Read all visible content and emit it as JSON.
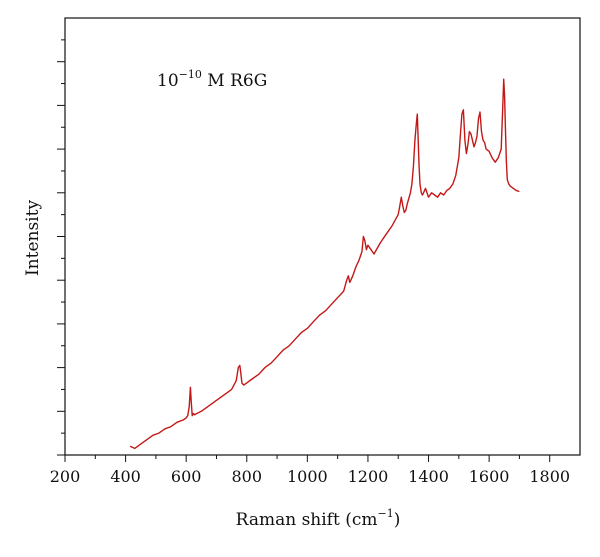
{
  "chart_data": {
    "type": "line",
    "title": "",
    "annotation": {
      "base": "10",
      "exponent": "−10",
      "rest": " M R6G"
    },
    "xlabel": {
      "text": "Raman shift (cm",
      "exponent": "−1",
      "close": ")"
    },
    "ylabel": "Intensity",
    "xlim": [
      200,
      1900
    ],
    "xticks": [
      200,
      400,
      600,
      800,
      1000,
      1200,
      1400,
      1600,
      1800
    ],
    "ylim": [
      0,
      100
    ],
    "yticks_major": [
      0,
      10,
      20,
      30,
      40,
      50,
      60,
      70,
      80,
      90
    ],
    "y_tick_labels": false,
    "grid": false,
    "legend": "none",
    "series": [
      {
        "color": "#c41818",
        "x": [
          415,
          430,
          450,
          470,
          490,
          510,
          530,
          550,
          570,
          590,
          600,
          605,
          610,
          614,
          617,
          620,
          624,
          628,
          635,
          650,
          670,
          690,
          710,
          730,
          750,
          765,
          772,
          777,
          780,
          784,
          790,
          800,
          820,
          840,
          860,
          880,
          900,
          920,
          940,
          960,
          980,
          1000,
          1020,
          1040,
          1060,
          1080,
          1100,
          1120,
          1130,
          1135,
          1140,
          1150,
          1160,
          1170,
          1180,
          1185,
          1190,
          1195,
          1200,
          1210,
          1220,
          1240,
          1260,
          1280,
          1300,
          1305,
          1310,
          1315,
          1320,
          1325,
          1330,
          1340,
          1345,
          1350,
          1355,
          1360,
          1363,
          1366,
          1369,
          1372,
          1376,
          1380,
          1390,
          1400,
          1410,
          1420,
          1430,
          1440,
          1450,
          1460,
          1470,
          1480,
          1490,
          1500,
          1505,
          1510,
          1515,
          1520,
          1525,
          1530,
          1535,
          1540,
          1545,
          1550,
          1555,
          1560,
          1565,
          1570,
          1575,
          1580,
          1585,
          1590,
          1600,
          1610,
          1620,
          1630,
          1640,
          1645,
          1648,
          1651,
          1654,
          1657,
          1660,
          1665,
          1670,
          1680,
          1690,
          1700
        ],
        "y": [
          2.0,
          1.5,
          2.5,
          3.5,
          4.5,
          5.0,
          6.0,
          6.5,
          7.5,
          8.0,
          8.5,
          9.0,
          11.0,
          15.5,
          12.0,
          9.0,
          9.5,
          9.2,
          9.5,
          10.0,
          11.0,
          12.0,
          13.0,
          14.0,
          15.0,
          17.0,
          20.0,
          20.5,
          19.0,
          16.5,
          16.0,
          16.5,
          17.5,
          18.5,
          20.0,
          21.0,
          22.5,
          24.0,
          25.0,
          26.5,
          28.0,
          29.0,
          30.5,
          32.0,
          33.0,
          34.5,
          36.0,
          37.5,
          40.0,
          41.0,
          39.5,
          41.0,
          43.0,
          44.5,
          46.5,
          50.0,
          49.0,
          47.0,
          48.0,
          47.0,
          46.0,
          48.5,
          50.5,
          52.5,
          55.0,
          57.0,
          59.0,
          57.0,
          55.5,
          56.0,
          57.5,
          60.0,
          62.0,
          66.0,
          72.0,
          76.0,
          78.0,
          72.0,
          66.0,
          62.0,
          60.0,
          59.5,
          61.0,
          59.0,
          60.0,
          59.5,
          59.0,
          60.0,
          59.5,
          60.5,
          61.0,
          62.0,
          64.0,
          68.0,
          73.0,
          78.0,
          79.0,
          72.0,
          69.0,
          71.0,
          74.0,
          73.5,
          72.0,
          70.5,
          71.5,
          73.0,
          77.0,
          78.5,
          74.0,
          72.0,
          71.5,
          70.0,
          69.5,
          68.0,
          67.0,
          68.0,
          70.0,
          80.0,
          86.0,
          82.0,
          74.0,
          67.0,
          63.0,
          62.0,
          61.5,
          61.0,
          60.5,
          60.3
        ]
      }
    ]
  }
}
